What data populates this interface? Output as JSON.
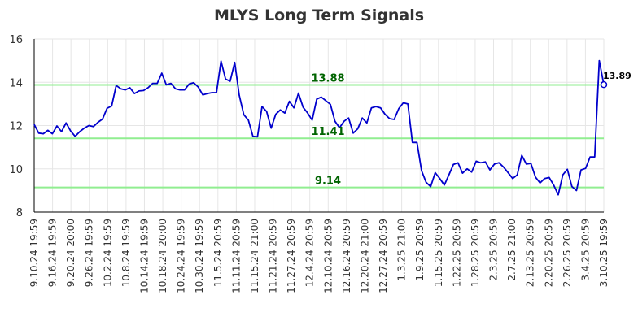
{
  "chart_data": {
    "type": "line",
    "title": "MLYS Long Term Signals",
    "xlabel": "",
    "ylabel": "",
    "ylim": [
      8,
      16
    ],
    "yticks": [
      8,
      10,
      12,
      14,
      16
    ],
    "grid": true,
    "xticks": [
      "9.10.24 19:59",
      "9.16.24 19:59",
      "9.20.24 20:00",
      "9.26.24 19:59",
      "10.2.24 19:59",
      "10.8.24 19:59",
      "10.14.24 19:59",
      "10.18.24 20:00",
      "10.24.24 19:59",
      "10.30.24 19:59",
      "11.5.24 20:59",
      "11.11.24 20:59",
      "11.15.24 21:00",
      "11.21.24 20:59",
      "11.27.24 20:59",
      "12.4.24 20:59",
      "12.10.24 20:59",
      "12.16.24 20:59",
      "12.20.24 21:00",
      "12.27.24 20:59",
      "1.3.25 21:00",
      "1.9.25 20:59",
      "1.15.25 20:59",
      "1.22.25 20:59",
      "1.28.25 20:59",
      "2.3.25 20:59",
      "2.7.25 21:00",
      "2.13.25 20:59",
      "2.20.25 20:59",
      "2.26.25 20:59",
      "3.4.25 20:59",
      "3.10.25 19:59"
    ],
    "signal_lines": [
      {
        "value": 13.88,
        "label": "13.88",
        "color": "#90ee90",
        "label_color": "#006400"
      },
      {
        "value": 11.41,
        "label": "11.41",
        "color": "#90ee90",
        "label_color": "#006400"
      },
      {
        "value": 9.14,
        "label": "9.14",
        "color": "#90ee90",
        "label_color": "#006400"
      }
    ],
    "last_value_label": "13.89",
    "series": [
      {
        "color": "#0000cc",
        "values": [
          12.05,
          11.65,
          11.62,
          11.78,
          11.62,
          11.98,
          11.72,
          12.12,
          11.75,
          11.5,
          11.72,
          11.88,
          12.0,
          11.95,
          12.15,
          12.3,
          12.8,
          12.9,
          13.85,
          13.7,
          13.65,
          13.75,
          13.48,
          13.6,
          13.62,
          13.75,
          13.95,
          13.95,
          14.42,
          13.88,
          13.95,
          13.7,
          13.65,
          13.65,
          13.92,
          13.98,
          13.78,
          13.42,
          13.48,
          13.52,
          13.52,
          14.98,
          14.15,
          14.05,
          14.92,
          13.4,
          12.5,
          12.25,
          11.5,
          11.48,
          12.88,
          12.65,
          11.88,
          12.52,
          12.72,
          12.58,
          13.12,
          12.82,
          13.5,
          12.85,
          12.58,
          12.25,
          13.22,
          13.32,
          13.15,
          12.98,
          12.2,
          11.9,
          12.2,
          12.35,
          11.65,
          11.85,
          12.35,
          12.12,
          12.82,
          12.88,
          12.82,
          12.52,
          12.32,
          12.28,
          12.78,
          13.05,
          13.0,
          11.22,
          11.22,
          9.92,
          9.38,
          9.18,
          9.82,
          9.55,
          9.25,
          9.72,
          10.2,
          10.28,
          9.8,
          10.0,
          9.85,
          10.35,
          10.28,
          10.32,
          9.95,
          10.22,
          10.28,
          10.08,
          9.82,
          9.55,
          9.72,
          10.62,
          10.22,
          10.25,
          9.62,
          9.35,
          9.55,
          9.6,
          9.25,
          8.8,
          9.72,
          9.98,
          9.18,
          9.0,
          9.95,
          10.02,
          10.55,
          10.55,
          15.0,
          13.89
        ]
      }
    ]
  }
}
